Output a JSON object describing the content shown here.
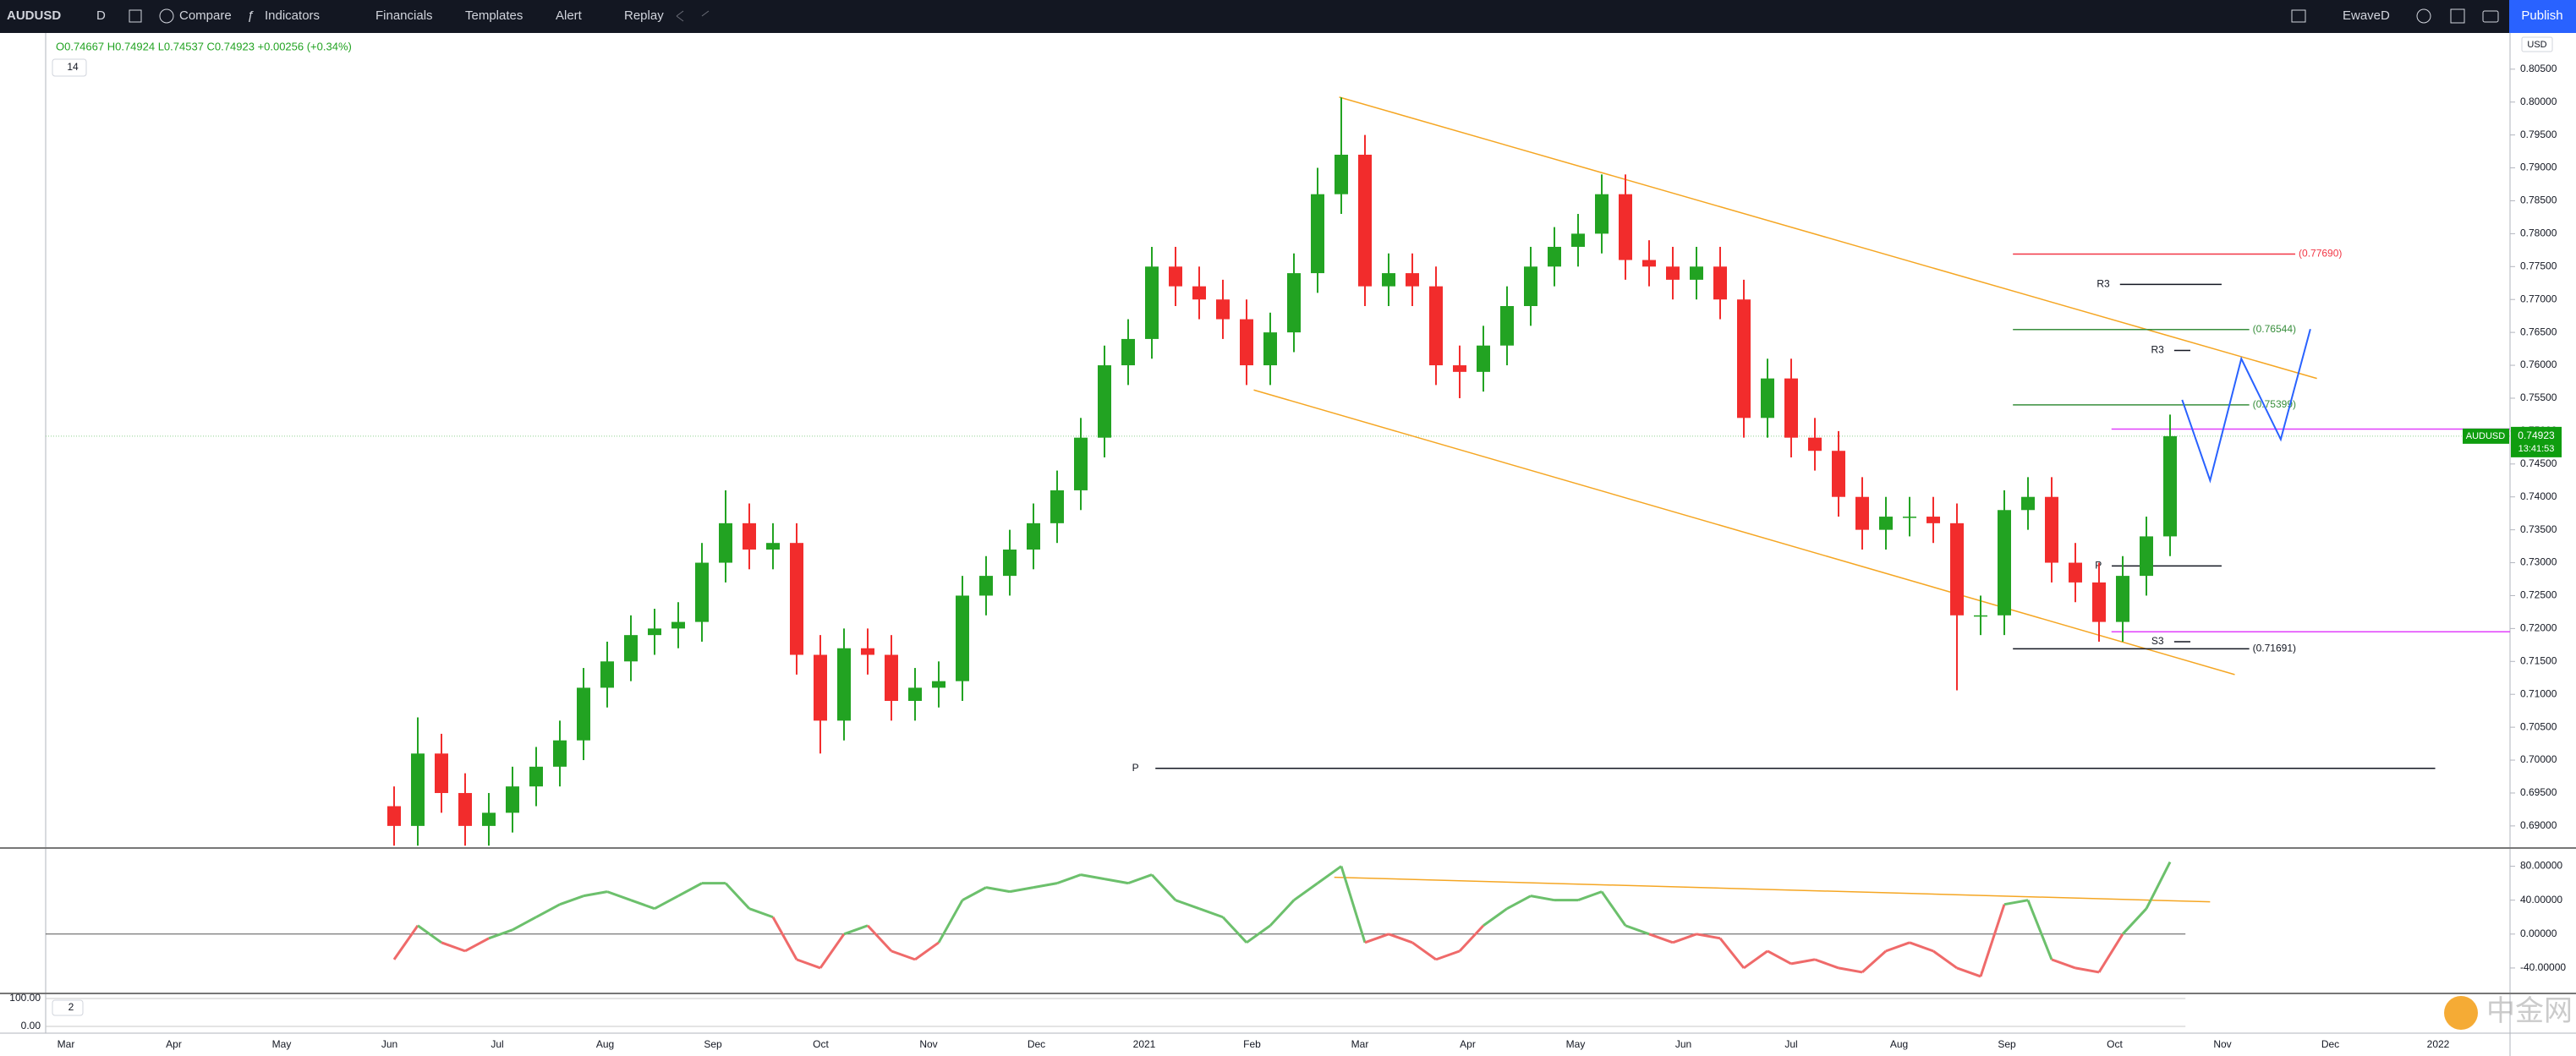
{
  "toolbar": {
    "symbol": "AUDUSD",
    "interval": "D",
    "items": [
      "Compare",
      "Indicators",
      "Financials",
      "Templates",
      "Alert",
      "Replay"
    ],
    "account": "EwaveD",
    "publish": "Publish"
  },
  "watermark": "中金网",
  "chart_data": [
    {
      "type": "candlestick",
      "legend": "O0.74667 H0.74924 L0.74537 C0.74923 +0.00256 (+0.34%)",
      "indicator_count": 14,
      "currency": "USD",
      "ylim": [
        0.6869,
        0.8105
      ],
      "yticks": [
        {
          "value": 0.805,
          "label": "0.80500"
        },
        {
          "value": 0.8,
          "label": "0.80000"
        },
        {
          "value": 0.795,
          "label": "0.79500"
        },
        {
          "value": 0.79,
          "label": "0.79000"
        },
        {
          "value": 0.785,
          "label": "0.78500"
        },
        {
          "value": 0.78,
          "label": "0.78000"
        },
        {
          "value": 0.775,
          "label": "0.77500"
        },
        {
          "value": 0.77,
          "label": "0.77000"
        },
        {
          "value": 0.765,
          "label": "0.76500"
        },
        {
          "value": 0.76,
          "label": "0.76000"
        },
        {
          "value": 0.755,
          "label": "0.75500"
        },
        {
          "value": 0.75,
          "label": "0.75000"
        },
        {
          "value": 0.745,
          "label": "0.74500"
        },
        {
          "value": 0.74,
          "label": "0.74000"
        },
        {
          "value": 0.735,
          "label": "0.73500"
        },
        {
          "value": 0.73,
          "label": "0.73000"
        },
        {
          "value": 0.725,
          "label": "0.72500"
        },
        {
          "value": 0.72,
          "label": "0.72000"
        },
        {
          "value": 0.715,
          "label": "0.71500"
        },
        {
          "value": 0.71,
          "label": "0.71000"
        },
        {
          "value": 0.705,
          "label": "0.70500"
        },
        {
          "value": 0.7,
          "label": "0.70000"
        },
        {
          "value": 0.695,
          "label": "0.69500"
        },
        {
          "value": 0.69,
          "label": "0.69000"
        }
      ],
      "grid": false,
      "x_labels": [
        "Mar",
        "Apr",
        "May",
        "Jun",
        "Jul",
        "Aug",
        "Sep",
        "Oct",
        "Nov",
        "Dec",
        "2021",
        "Feb",
        "Mar",
        "Apr",
        "May",
        "Jun",
        "Jul",
        "Aug",
        "Sep",
        "Oct",
        "Nov",
        "Dec",
        "2022"
      ],
      "up_color": "#22a322",
      "down_color": "#f22c2c",
      "open": [
        0.693,
        0.69,
        0.701,
        0.695,
        0.69,
        0.692,
        0.696,
        0.699,
        0.703,
        0.711,
        0.715,
        0.719,
        0.72,
        0.721,
        0.73,
        0.736,
        0.732,
        0.733,
        0.716,
        0.706,
        0.717,
        0.716,
        0.709,
        0.711,
        0.712,
        0.725,
        0.728,
        0.732,
        0.736,
        0.741,
        0.749,
        0.76,
        0.764,
        0.775,
        0.772,
        0.77,
        0.767,
        0.76,
        0.765,
        0.774,
        0.786,
        0.792,
        0.772,
        0.774,
        0.772,
        0.76,
        0.759,
        0.763,
        0.769,
        0.775,
        0.778,
        0.78,
        0.786,
        0.776,
        0.775,
        0.773,
        0.775,
        0.77,
        0.752,
        0.758,
        0.749,
        0.747,
        0.74,
        0.735,
        0.737,
        0.737,
        0.736,
        0.722,
        0.722,
        0.738,
        0.74,
        0.73,
        0.727,
        0.721,
        0.728,
        0.734
      ],
      "high": [
        0.696,
        0.7065,
        0.704,
        0.698,
        0.695,
        0.699,
        0.702,
        0.706,
        0.714,
        0.718,
        0.722,
        0.723,
        0.724,
        0.733,
        0.741,
        0.739,
        0.736,
        0.736,
        0.719,
        0.72,
        0.72,
        0.719,
        0.714,
        0.715,
        0.728,
        0.731,
        0.735,
        0.739,
        0.744,
        0.752,
        0.763,
        0.767,
        0.778,
        0.778,
        0.775,
        0.773,
        0.77,
        0.768,
        0.777,
        0.79,
        0.8007,
        0.795,
        0.777,
        0.777,
        0.775,
        0.763,
        0.766,
        0.772,
        0.778,
        0.781,
        0.783,
        0.789,
        0.789,
        0.779,
        0.778,
        0.778,
        0.778,
        0.773,
        0.761,
        0.761,
        0.752,
        0.75,
        0.743,
        0.74,
        0.74,
        0.74,
        0.739,
        0.725,
        0.741,
        0.743,
        0.743,
        0.733,
        0.73,
        0.731,
        0.737,
        0.7525
      ],
      "low": [
        0.687,
        0.687,
        0.692,
        0.687,
        0.687,
        0.689,
        0.693,
        0.696,
        0.7,
        0.708,
        0.712,
        0.716,
        0.717,
        0.718,
        0.727,
        0.729,
        0.729,
        0.713,
        0.701,
        0.703,
        0.713,
        0.706,
        0.706,
        0.708,
        0.709,
        0.722,
        0.725,
        0.729,
        0.733,
        0.738,
        0.746,
        0.757,
        0.761,
        0.769,
        0.767,
        0.764,
        0.757,
        0.757,
        0.762,
        0.771,
        0.783,
        0.769,
        0.769,
        0.769,
        0.757,
        0.755,
        0.756,
        0.76,
        0.766,
        0.772,
        0.775,
        0.777,
        0.773,
        0.772,
        0.77,
        0.77,
        0.767,
        0.749,
        0.749,
        0.746,
        0.744,
        0.737,
        0.732,
        0.732,
        0.734,
        0.733,
        0.7106,
        0.719,
        0.719,
        0.735,
        0.727,
        0.724,
        0.718,
        0.718,
        0.725,
        0.731
      ],
      "close": [
        0.69,
        0.701,
        0.695,
        0.69,
        0.692,
        0.696,
        0.699,
        0.703,
        0.711,
        0.715,
        0.719,
        0.72,
        0.721,
        0.73,
        0.736,
        0.732,
        0.733,
        0.716,
        0.706,
        0.717,
        0.716,
        0.709,
        0.711,
        0.712,
        0.725,
        0.728,
        0.732,
        0.736,
        0.741,
        0.749,
        0.76,
        0.764,
        0.775,
        0.772,
        0.77,
        0.767,
        0.76,
        0.765,
        0.774,
        0.786,
        0.792,
        0.772,
        0.774,
        0.772,
        0.76,
        0.759,
        0.763,
        0.769,
        0.775,
        0.778,
        0.78,
        0.786,
        0.776,
        0.775,
        0.773,
        0.775,
        0.77,
        0.752,
        0.758,
        0.749,
        0.747,
        0.74,
        0.735,
        0.737,
        0.737,
        0.736,
        0.722,
        0.722,
        0.738,
        0.74,
        0.73,
        0.727,
        0.721,
        0.728,
        0.734,
        0.74923
      ],
      "last_price": {
        "symbol": "AUDUSD",
        "value": 0.74923,
        "countdown": "13:41:53",
        "color": "#0f9d0f"
      },
      "levels": [
        {
          "value": 0.7769,
          "label": "(0.77690)",
          "color": "#f23645"
        },
        {
          "value": 0.76544,
          "label": "(0.76544)",
          "color": "#388e3c"
        },
        {
          "value": 0.75399,
          "label": "(0.75399)",
          "color": "#388e3c"
        },
        {
          "value": 0.71691,
          "label": "(0.71691)",
          "color": "#131722"
        }
      ],
      "pivots": [
        {
          "name": "R3",
          "value": 0.7723
        },
        {
          "name": "R3",
          "value": 0.76225
        },
        {
          "name": "P",
          "value": 0.7295
        },
        {
          "name": "S3",
          "value": 0.718
        },
        {
          "name": "P",
          "value": 0.69875
        }
      ],
      "channel": {
        "upper": [
          0.80075,
          0.758
        ],
        "lower": [
          0.75625,
          0.713
        ],
        "color": "#f5a623"
      },
      "projection": {
        "values": [
          0.75475,
          0.7425,
          0.761,
          0.74875,
          0.7655
        ],
        "color": "#2962ff"
      },
      "highlights": {
        "values": [
          0.7503,
          0.7195
        ],
        "color": "#e040fb"
      }
    },
    {
      "type": "line",
      "ylim": [
        -69,
        99.5
      ],
      "yticks": [
        {
          "value": 80,
          "label": "80.00000"
        },
        {
          "value": 40,
          "label": "40.00000"
        },
        {
          "value": 0,
          "label": "0.00000"
        },
        {
          "value": -40,
          "label": "-40.00000"
        }
      ],
      "values": [
        -30,
        10,
        -10,
        -20,
        -5,
        5,
        20,
        35,
        45,
        50,
        40,
        30,
        45,
        60,
        60,
        30,
        20,
        -30,
        -40,
        0,
        10,
        -20,
        -30,
        -10,
        40,
        55,
        50,
        55,
        60,
        70,
        65,
        60,
        70,
        40,
        30,
        20,
        -10,
        10,
        40,
        60,
        80,
        -10,
        0,
        -10,
        -30,
        -20,
        10,
        30,
        45,
        40,
        40,
        50,
        10,
        0,
        -10,
        0,
        -5,
        -40,
        -20,
        -35,
        -30,
        -40,
        -45,
        -20,
        -10,
        -20,
        -40,
        -50,
        35,
        40,
        -30,
        -40,
        -45,
        0,
        30,
        85
      ],
      "up_color": "#6cc06c",
      "down_color": "#ef6a6a",
      "trendline": {
        "values": [
          67,
          38
        ],
        "color": "#f5a623"
      }
    },
    {
      "type": "line",
      "indicator_count": 2,
      "ylim": [
        -18,
        115
      ],
      "yticks": [
        {
          "value": 100,
          "label": "100.00"
        },
        {
          "value": 0,
          "label": "0.00"
        }
      ]
    }
  ]
}
